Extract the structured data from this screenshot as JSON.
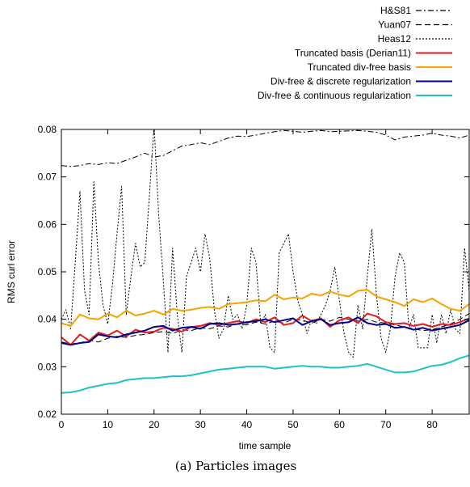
{
  "chart_data": {
    "type": "line",
    "xlabel": "time sample",
    "ylabel": "RMS curl error",
    "xlim": [
      0,
      88
    ],
    "ylim": [
      0.02,
      0.08
    ],
    "xticks": [
      "0",
      "10",
      "20",
      "30",
      "40",
      "50",
      "60",
      "70",
      "80"
    ],
    "yticks": [
      "0.02",
      "0.03",
      "0.04",
      "0.05",
      "0.06",
      "0.07",
      "0.08"
    ],
    "legend_position": "top-right, above plot",
    "grid": false,
    "caption": "(a) Particles images",
    "series": [
      {
        "name": "H&S81",
        "color": "#000000",
        "dash": "dashdot",
        "x": [
          0,
          2,
          4,
          6,
          8,
          10,
          12,
          14,
          16,
          18,
          20,
          22,
          24,
          26,
          28,
          30,
          32,
          34,
          36,
          38,
          40,
          42,
          44,
          46,
          48,
          50,
          52,
          54,
          56,
          58,
          60,
          62,
          64,
          66,
          68,
          70,
          72,
          74,
          76,
          78,
          80,
          82,
          84,
          86,
          88
        ],
        "y": [
          0.0724,
          0.0722,
          0.0724,
          0.0728,
          0.0726,
          0.073,
          0.0728,
          0.0735,
          0.0742,
          0.075,
          0.0742,
          0.0745,
          0.0755,
          0.0765,
          0.0768,
          0.0772,
          0.0768,
          0.0775,
          0.0782,
          0.0786,
          0.0785,
          0.0788,
          0.0792,
          0.0795,
          0.0798,
          0.0796,
          0.0794,
          0.0796,
          0.0798,
          0.0795,
          0.0796,
          0.0797,
          0.0798,
          0.0796,
          0.0794,
          0.0788,
          0.0778,
          0.0784,
          0.0786,
          0.0788,
          0.0792,
          0.0788,
          0.0786,
          0.0782,
          0.0788
        ]
      },
      {
        "name": "Yuan07",
        "color": "#000000",
        "dash": "dashed",
        "x": [
          0,
          2,
          4,
          6,
          8,
          10,
          12,
          14,
          16,
          18,
          20,
          22,
          24,
          26,
          28,
          30,
          32,
          34,
          36,
          38,
          40,
          42,
          44,
          46,
          48,
          50,
          52,
          54,
          56,
          58,
          60,
          62,
          64,
          66,
          68,
          70,
          72,
          74,
          76,
          78,
          80,
          82,
          84,
          86,
          88
        ],
        "y": [
          0.0352,
          0.0348,
          0.035,
          0.0356,
          0.0352,
          0.036,
          0.0364,
          0.0362,
          0.0366,
          0.0368,
          0.0372,
          0.0374,
          0.037,
          0.0378,
          0.0376,
          0.0382,
          0.038,
          0.0386,
          0.0384,
          0.039,
          0.0388,
          0.0394,
          0.039,
          0.0396,
          0.0392,
          0.04,
          0.0398,
          0.0392,
          0.04,
          0.0396,
          0.0404,
          0.04,
          0.0396,
          0.04,
          0.0394,
          0.0392,
          0.0388,
          0.0384,
          0.038,
          0.0376,
          0.0378,
          0.0384,
          0.039,
          0.04,
          0.0412
        ]
      },
      {
        "name": "Heas12",
        "color": "#000000",
        "dash": "dotted",
        "x": [
          0,
          1,
          2,
          3,
          4,
          5,
          6,
          7,
          8,
          9,
          10,
          11,
          12,
          13,
          14,
          15,
          16,
          17,
          18,
          19,
          20,
          21,
          22,
          23,
          24,
          25,
          26,
          27,
          28,
          29,
          30,
          31,
          32,
          33,
          34,
          35,
          36,
          37,
          38,
          39,
          40,
          41,
          42,
          43,
          44,
          45,
          46,
          47,
          48,
          49,
          50,
          51,
          52,
          53,
          54,
          55,
          56,
          57,
          58,
          59,
          60,
          61,
          62,
          63,
          64,
          65,
          66,
          67,
          68,
          69,
          70,
          71,
          72,
          73,
          74,
          75,
          76,
          77,
          78,
          79,
          80,
          81,
          82,
          83,
          84,
          85,
          86,
          87,
          88
        ],
        "y": [
          0.04,
          0.042,
          0.038,
          0.052,
          0.067,
          0.046,
          0.041,
          0.069,
          0.052,
          0.043,
          0.039,
          0.047,
          0.058,
          0.068,
          0.041,
          0.049,
          0.056,
          0.051,
          0.052,
          0.066,
          0.081,
          0.062,
          0.048,
          0.033,
          0.055,
          0.041,
          0.033,
          0.049,
          0.052,
          0.055,
          0.05,
          0.058,
          0.053,
          0.042,
          0.036,
          0.038,
          0.045,
          0.04,
          0.041,
          0.038,
          0.043,
          0.055,
          0.052,
          0.039,
          0.041,
          0.034,
          0.033,
          0.054,
          0.056,
          0.058,
          0.05,
          0.044,
          0.041,
          0.037,
          0.04,
          0.039,
          0.041,
          0.043,
          0.046,
          0.051,
          0.044,
          0.037,
          0.033,
          0.032,
          0.043,
          0.038,
          0.049,
          0.059,
          0.045,
          0.036,
          0.033,
          0.038,
          0.049,
          0.054,
          0.052,
          0.038,
          0.041,
          0.034,
          0.034,
          0.034,
          0.041,
          0.035,
          0.041,
          0.037,
          0.042,
          0.038,
          0.037,
          0.055,
          0.046
        ]
      },
      {
        "name": "Truncated basis (Derian11)",
        "color": "#e41a1c",
        "dash": "solid",
        "x": [
          0,
          2,
          4,
          6,
          8,
          10,
          12,
          14,
          16,
          18,
          20,
          22,
          24,
          26,
          28,
          30,
          32,
          34,
          36,
          38,
          40,
          42,
          44,
          46,
          48,
          50,
          52,
          54,
          56,
          58,
          60,
          62,
          64,
          66,
          68,
          70,
          72,
          74,
          76,
          78,
          80,
          82,
          84,
          86,
          88
        ],
        "y": [
          0.0362,
          0.0346,
          0.0368,
          0.0355,
          0.0372,
          0.0366,
          0.0376,
          0.0364,
          0.0378,
          0.0372,
          0.0374,
          0.0382,
          0.038,
          0.0374,
          0.0384,
          0.0386,
          0.0392,
          0.0388,
          0.0392,
          0.0396,
          0.0392,
          0.04,
          0.0394,
          0.0404,
          0.0388,
          0.0392,
          0.0408,
          0.0396,
          0.0402,
          0.0384,
          0.0398,
          0.0404,
          0.0392,
          0.0412,
          0.0406,
          0.0394,
          0.039,
          0.0392,
          0.0386,
          0.039,
          0.0384,
          0.039,
          0.0388,
          0.0394,
          0.0402
        ]
      },
      {
        "name": "Truncated div-free basis",
        "color": "#f5a300",
        "dash": "solid",
        "x": [
          0,
          2,
          4,
          6,
          8,
          10,
          12,
          14,
          16,
          18,
          20,
          22,
          24,
          26,
          28,
          30,
          32,
          34,
          36,
          38,
          40,
          42,
          44,
          46,
          48,
          50,
          52,
          54,
          56,
          58,
          60,
          62,
          64,
          66,
          68,
          70,
          72,
          74,
          76,
          78,
          80,
          82,
          84,
          86,
          88
        ],
        "y": [
          0.0392,
          0.0386,
          0.041,
          0.0402,
          0.04,
          0.0412,
          0.0404,
          0.0418,
          0.0408,
          0.0412,
          0.0418,
          0.041,
          0.0422,
          0.0418,
          0.042,
          0.0424,
          0.0426,
          0.0422,
          0.0432,
          0.0434,
          0.0436,
          0.044,
          0.0438,
          0.0452,
          0.0442,
          0.0446,
          0.0444,
          0.0454,
          0.045,
          0.0458,
          0.0452,
          0.0448,
          0.046,
          0.0462,
          0.0448,
          0.0442,
          0.0436,
          0.0428,
          0.0442,
          0.0436,
          0.0444,
          0.0432,
          0.0422,
          0.0418,
          0.0432
        ]
      },
      {
        "name": "Div-free & discrete regularization",
        "color": "#00008b",
        "dash": "solid",
        "x": [
          0,
          2,
          4,
          6,
          8,
          10,
          12,
          14,
          16,
          18,
          20,
          22,
          24,
          26,
          28,
          30,
          32,
          34,
          36,
          38,
          40,
          42,
          44,
          46,
          48,
          50,
          52,
          54,
          56,
          58,
          60,
          62,
          64,
          66,
          68,
          70,
          72,
          74,
          76,
          78,
          80,
          82,
          84,
          86,
          88
        ],
        "y": [
          0.035,
          0.0346,
          0.035,
          0.0352,
          0.0368,
          0.0364,
          0.0362,
          0.0368,
          0.0372,
          0.0376,
          0.0384,
          0.0386,
          0.0376,
          0.0382,
          0.0384,
          0.038,
          0.039,
          0.0392,
          0.0388,
          0.039,
          0.0394,
          0.0396,
          0.04,
          0.0394,
          0.0398,
          0.0402,
          0.0388,
          0.0396,
          0.04,
          0.0388,
          0.0392,
          0.0394,
          0.0404,
          0.0392,
          0.0388,
          0.039,
          0.0382,
          0.0384,
          0.0378,
          0.0382,
          0.0376,
          0.038,
          0.0384,
          0.0388,
          0.0398
        ]
      },
      {
        "name": "Div-free & continuous regularization",
        "color": "#19c3c9",
        "dash": "solid",
        "x": [
          0,
          2,
          4,
          6,
          8,
          10,
          12,
          14,
          16,
          18,
          20,
          22,
          24,
          26,
          28,
          30,
          32,
          34,
          36,
          38,
          40,
          42,
          44,
          46,
          48,
          50,
          52,
          54,
          56,
          58,
          60,
          62,
          64,
          66,
          68,
          70,
          72,
          74,
          76,
          78,
          80,
          82,
          84,
          86,
          88
        ],
        "y": [
          0.0245,
          0.0246,
          0.025,
          0.0256,
          0.026,
          0.0264,
          0.0266,
          0.0272,
          0.0274,
          0.0276,
          0.0276,
          0.0278,
          0.028,
          0.028,
          0.0282,
          0.0286,
          0.029,
          0.0294,
          0.0296,
          0.0298,
          0.03,
          0.03,
          0.03,
          0.0296,
          0.0298,
          0.03,
          0.0302,
          0.03,
          0.03,
          0.0298,
          0.0298,
          0.03,
          0.0302,
          0.0306,
          0.03,
          0.0294,
          0.0288,
          0.0288,
          0.029,
          0.0296,
          0.0302,
          0.0304,
          0.031,
          0.0318,
          0.0324
        ]
      }
    ]
  }
}
